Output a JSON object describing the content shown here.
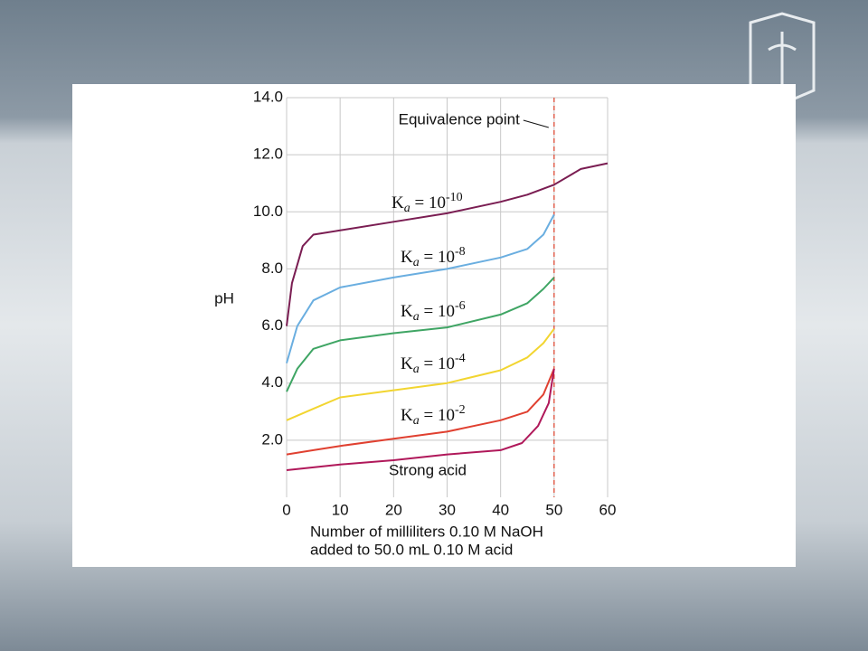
{
  "chart_data": {
    "type": "line",
    "y_label": "pH",
    "x_label": [
      "Number of milliliters 0.10 M NaOH",
      "added to 50.0 mL 0.10 M acid"
    ],
    "xlim": [
      0,
      60
    ],
    "ylim": [
      0,
      14
    ],
    "xticks": [
      0,
      10,
      20,
      30,
      40,
      50,
      60
    ],
    "yticks": [
      {
        "value": 2,
        "label": "2.0"
      },
      {
        "value": 4,
        "label": "4.0"
      },
      {
        "value": 6,
        "label": "6.0"
      },
      {
        "value": 8,
        "label": "8.0"
      },
      {
        "value": 10,
        "label": "10.0"
      },
      {
        "value": 12,
        "label": "12.0"
      },
      {
        "value": 14,
        "label": "14.0"
      }
    ],
    "grid": true,
    "highlight_xtick": 50,
    "highlight_color": "#e0402a",
    "annotation": {
      "text": "Equivalence point",
      "x": 50
    },
    "series": [
      {
        "label": {
          "base": "K",
          "sub": "a",
          "rel": " = 10",
          "sup": "-10"
        },
        "color": "#7a1d52",
        "x": [
          0,
          1,
          3,
          5,
          10,
          20,
          30,
          40,
          45,
          50,
          55,
          60
        ],
        "values": [
          6.0,
          7.5,
          8.8,
          9.2,
          9.35,
          9.65,
          9.95,
          10.35,
          10.6,
          10.95,
          11.5,
          11.7
        ]
      },
      {
        "label": {
          "base": "K",
          "sub": "a",
          "rel": " = 10",
          "sup": "-8"
        },
        "color": "#6aaee0",
        "x": [
          0,
          2,
          5,
          10,
          20,
          30,
          40,
          45,
          48,
          50
        ],
        "values": [
          4.7,
          6.0,
          6.9,
          7.35,
          7.7,
          8.0,
          8.4,
          8.7,
          9.2,
          9.9
        ]
      },
      {
        "label": {
          "base": "K",
          "sub": "a",
          "rel": " = 10",
          "sup": "-6"
        },
        "color": "#3fa564",
        "x": [
          0,
          2,
          5,
          10,
          20,
          30,
          40,
          45,
          48,
          50
        ],
        "values": [
          3.7,
          4.5,
          5.2,
          5.5,
          5.75,
          5.95,
          6.4,
          6.8,
          7.3,
          7.7
        ]
      },
      {
        "label": {
          "base": "K",
          "sub": "a",
          "rel": " = 10",
          "sup": "-4"
        },
        "color": "#f2d530",
        "x": [
          0,
          5,
          10,
          20,
          30,
          40,
          45,
          48,
          50
        ],
        "values": [
          2.7,
          3.1,
          3.5,
          3.75,
          4.0,
          4.45,
          4.9,
          5.4,
          5.9
        ]
      },
      {
        "label": {
          "base": "K",
          "sub": "a",
          "rel": " = 10",
          "sup": "-2"
        },
        "color": "#e04030",
        "x": [
          0,
          5,
          10,
          20,
          30,
          40,
          45,
          48,
          50
        ],
        "values": [
          1.5,
          1.65,
          1.8,
          2.05,
          2.3,
          2.7,
          3.0,
          3.6,
          4.5
        ]
      },
      {
        "name": "Strong acid",
        "color": "#b0185a",
        "x": [
          0,
          10,
          20,
          30,
          40,
          44,
          47,
          49,
          50
        ],
        "values": [
          0.95,
          1.15,
          1.3,
          1.5,
          1.65,
          1.9,
          2.5,
          3.3,
          4.5
        ]
      }
    ]
  }
}
